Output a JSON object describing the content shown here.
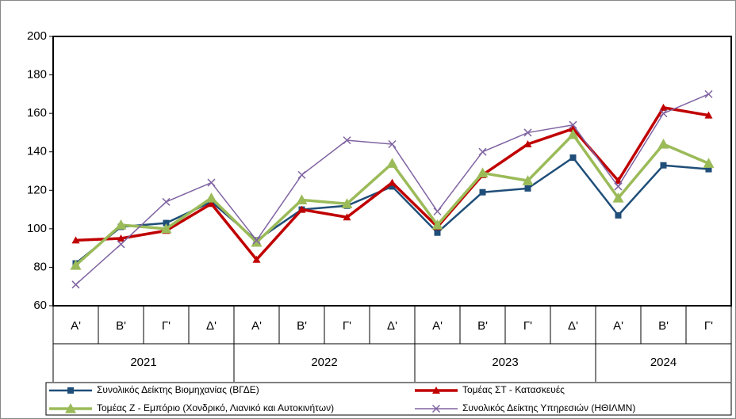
{
  "chart_data": {
    "type": "line",
    "categories": [
      "Α'",
      "Β'",
      "Γ'",
      "Δ'",
      "Α'",
      "Β'",
      "Γ'",
      "Δ'",
      "Α'",
      "Β'",
      "Γ'",
      "Δ'",
      "Α'",
      "Β'",
      "Γ'"
    ],
    "category_groups": [
      {
        "label": "2021",
        "count": 4
      },
      {
        "label": "2022",
        "count": 4
      },
      {
        "label": "2023",
        "count": 4
      },
      {
        "label": "2024",
        "count": 3
      }
    ],
    "series": [
      {
        "name": "Συνολικός Δείκτης Βιομηχανίας (ΒΓΔΕ)",
        "color": "#1f4e79",
        "marker": "square",
        "values": [
          82,
          101,
          103,
          114,
          94,
          110,
          112,
          122,
          98,
          119,
          121,
          137,
          107,
          133,
          131
        ]
      },
      {
        "name": "Τομέας ΣΤ - Κατασκευές",
        "color": "#c00000",
        "marker": "triangle",
        "values": [
          94,
          95,
          99,
          113,
          84,
          110,
          106,
          124,
          101,
          128,
          144,
          152,
          125,
          163,
          159
        ]
      },
      {
        "name": "Τομέας Ζ - Εμπόριο (Χονδρικό, Λιανικό και Αυτοκινήτων)",
        "color": "#9bbb59",
        "marker": "triangle",
        "values": [
          81,
          102,
          100,
          116,
          93,
          115,
          113,
          134,
          102,
          129,
          125,
          149,
          116,
          144,
          134
        ]
      },
      {
        "name": "Συνολικός Δείκτης Υπηρεσιών (ΗΘΙΛΜΝ)",
        "color": "#8064a2",
        "marker": "x",
        "values": [
          71,
          92,
          114,
          124,
          94,
          128,
          146,
          144,
          109,
          140,
          150,
          154,
          122,
          160,
          170
        ]
      }
    ],
    "ylim": [
      60,
      200
    ],
    "yticks": [
      60,
      80,
      100,
      120,
      140,
      160,
      180,
      200
    ],
    "grid": false,
    "legend": "bottom"
  }
}
